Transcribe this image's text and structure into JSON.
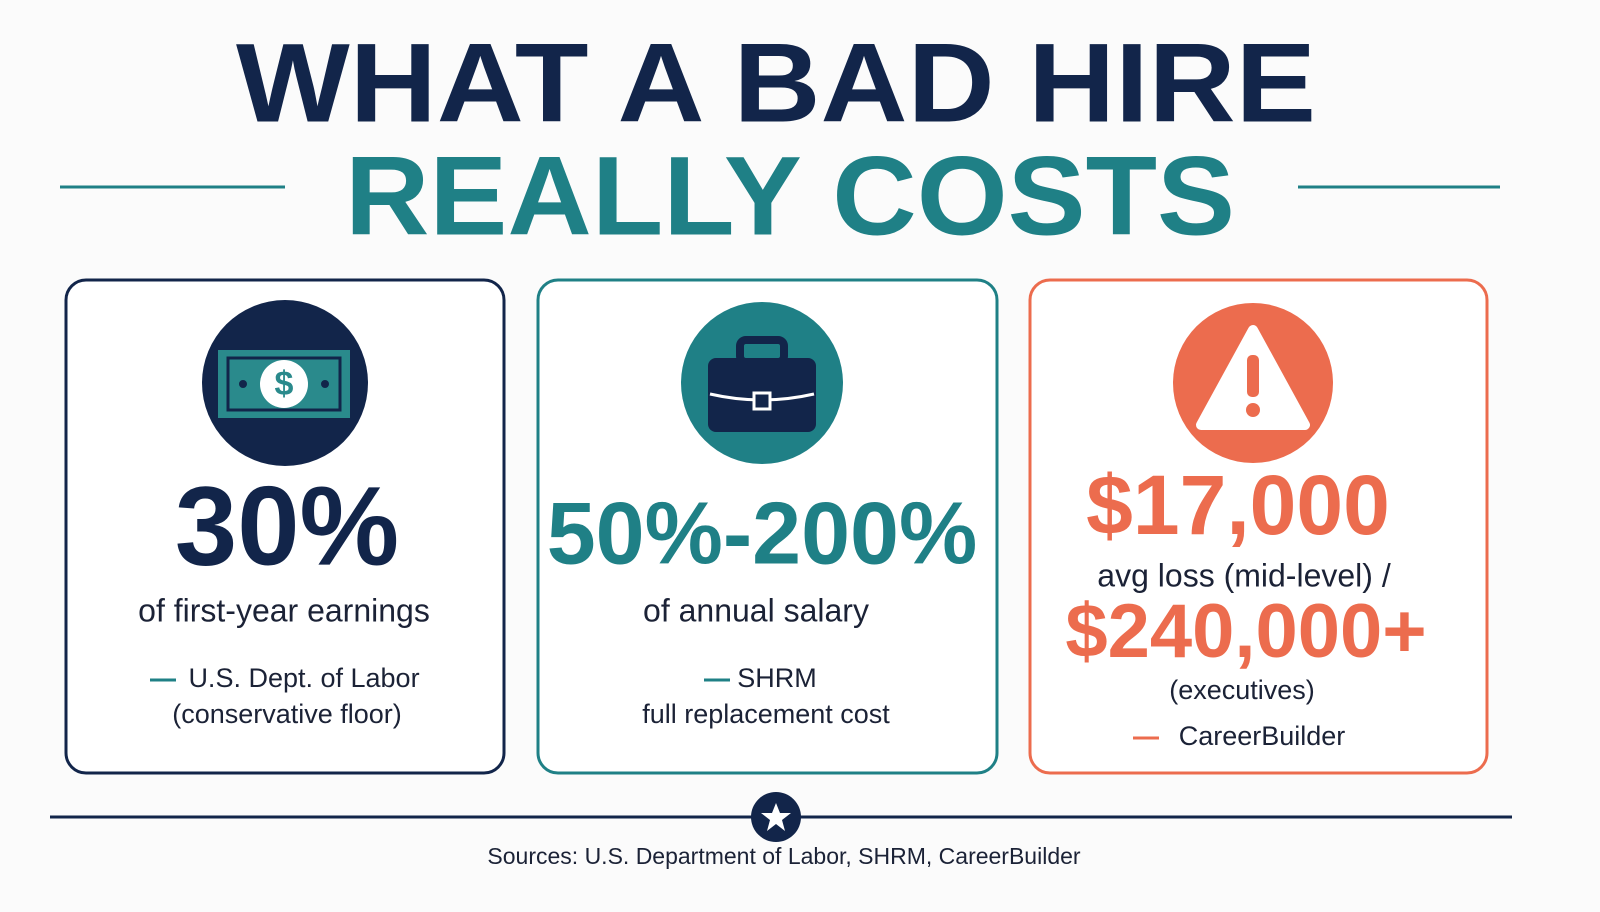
{
  "header": {
    "line1": "WHAT A BAD HIRE",
    "line2": "REALLY COSTS"
  },
  "cards": [
    {
      "stat": "30%",
      "description": "of first-year earnings",
      "source": [
        "U.S. Dept. of Labor",
        "(conservative floor)"
      ]
    },
    {
      "stat": "50%-200%",
      "description": "of annual salary",
      "source": [
        "SHRM",
        "full replacement cost"
      ]
    },
    {
      "stat": "$17,000",
      "description": "avg loss (mid-level) /",
      "stat2": "$240,000+",
      "description2": "(executives)",
      "source": [
        "CareerBuilder"
      ]
    }
  ],
  "footer": {
    "sources": "Sources: U.S. Department of Labor, SHRM, CareerBuilder"
  }
}
